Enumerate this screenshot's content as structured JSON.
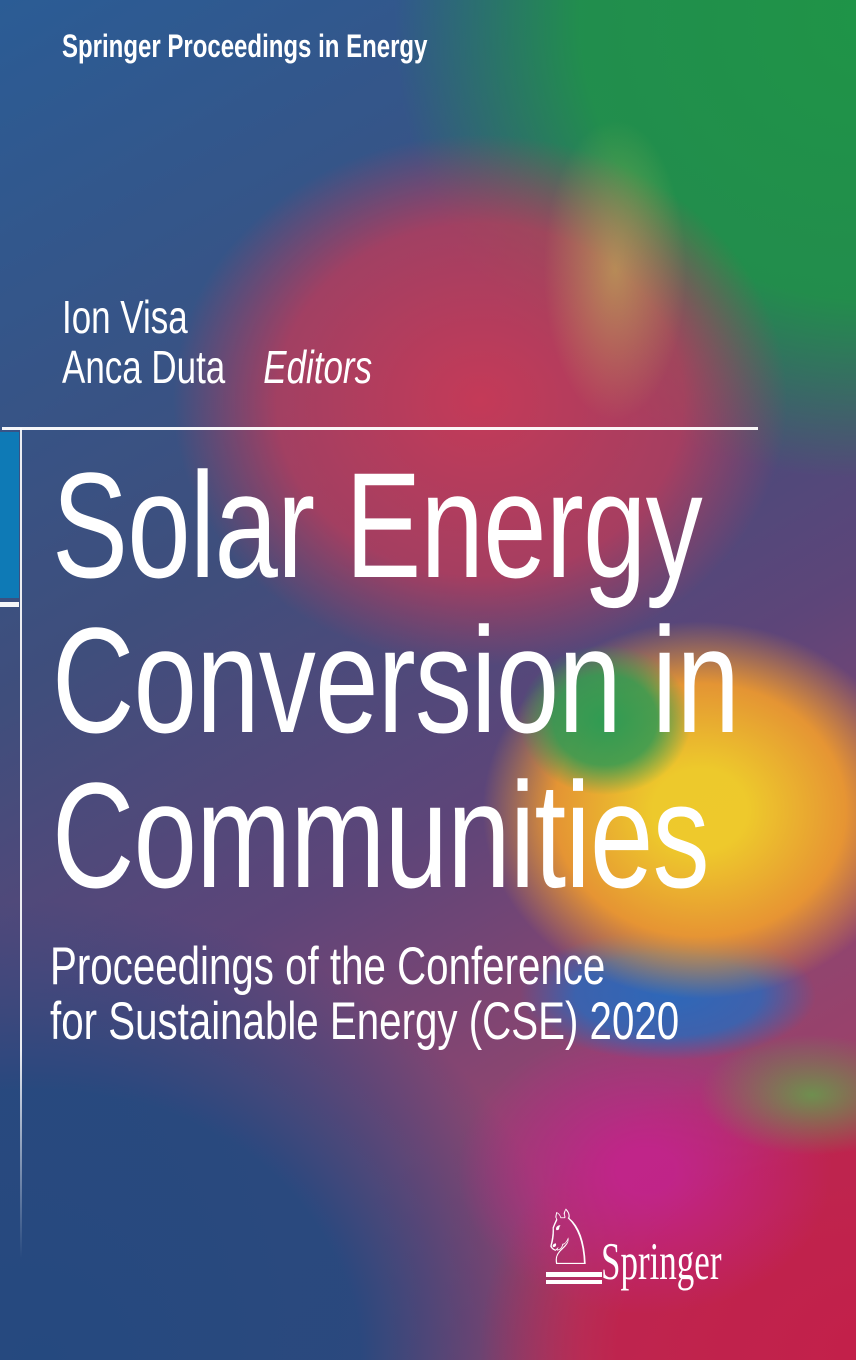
{
  "cover": {
    "series_title": "Springer Proceedings in Energy",
    "editors": [
      "Ion Visa",
      "Anca Duta"
    ],
    "editors_label": "Editors",
    "title_lines": [
      "Solar Energy",
      "Conversion in",
      "Communities"
    ],
    "subtitle_lines": [
      "Proceedings of the Conference",
      "for Sustainable Energy (CSE) 2020"
    ],
    "publisher": {
      "name": "Springer",
      "logo_icon": "springer-horse-knight-icon",
      "logo_glyph": "♘"
    },
    "colors": {
      "accent_bar": "#0e7ab6",
      "top_left_blue": "#2b5c95",
      "top_right_green": "#1f9447",
      "central_red": "#c43a58",
      "green_blob": "#2f9b53",
      "halo_yellow": "#f4d028",
      "halo_orange": "#ef9b2e",
      "blue_swirl": "#2a69bc",
      "magenta_blob": "#c1248b",
      "bottom_right_crimson": "#c2204a",
      "bottom_left_navy": "#25497f",
      "text": "#ffffff"
    }
  }
}
